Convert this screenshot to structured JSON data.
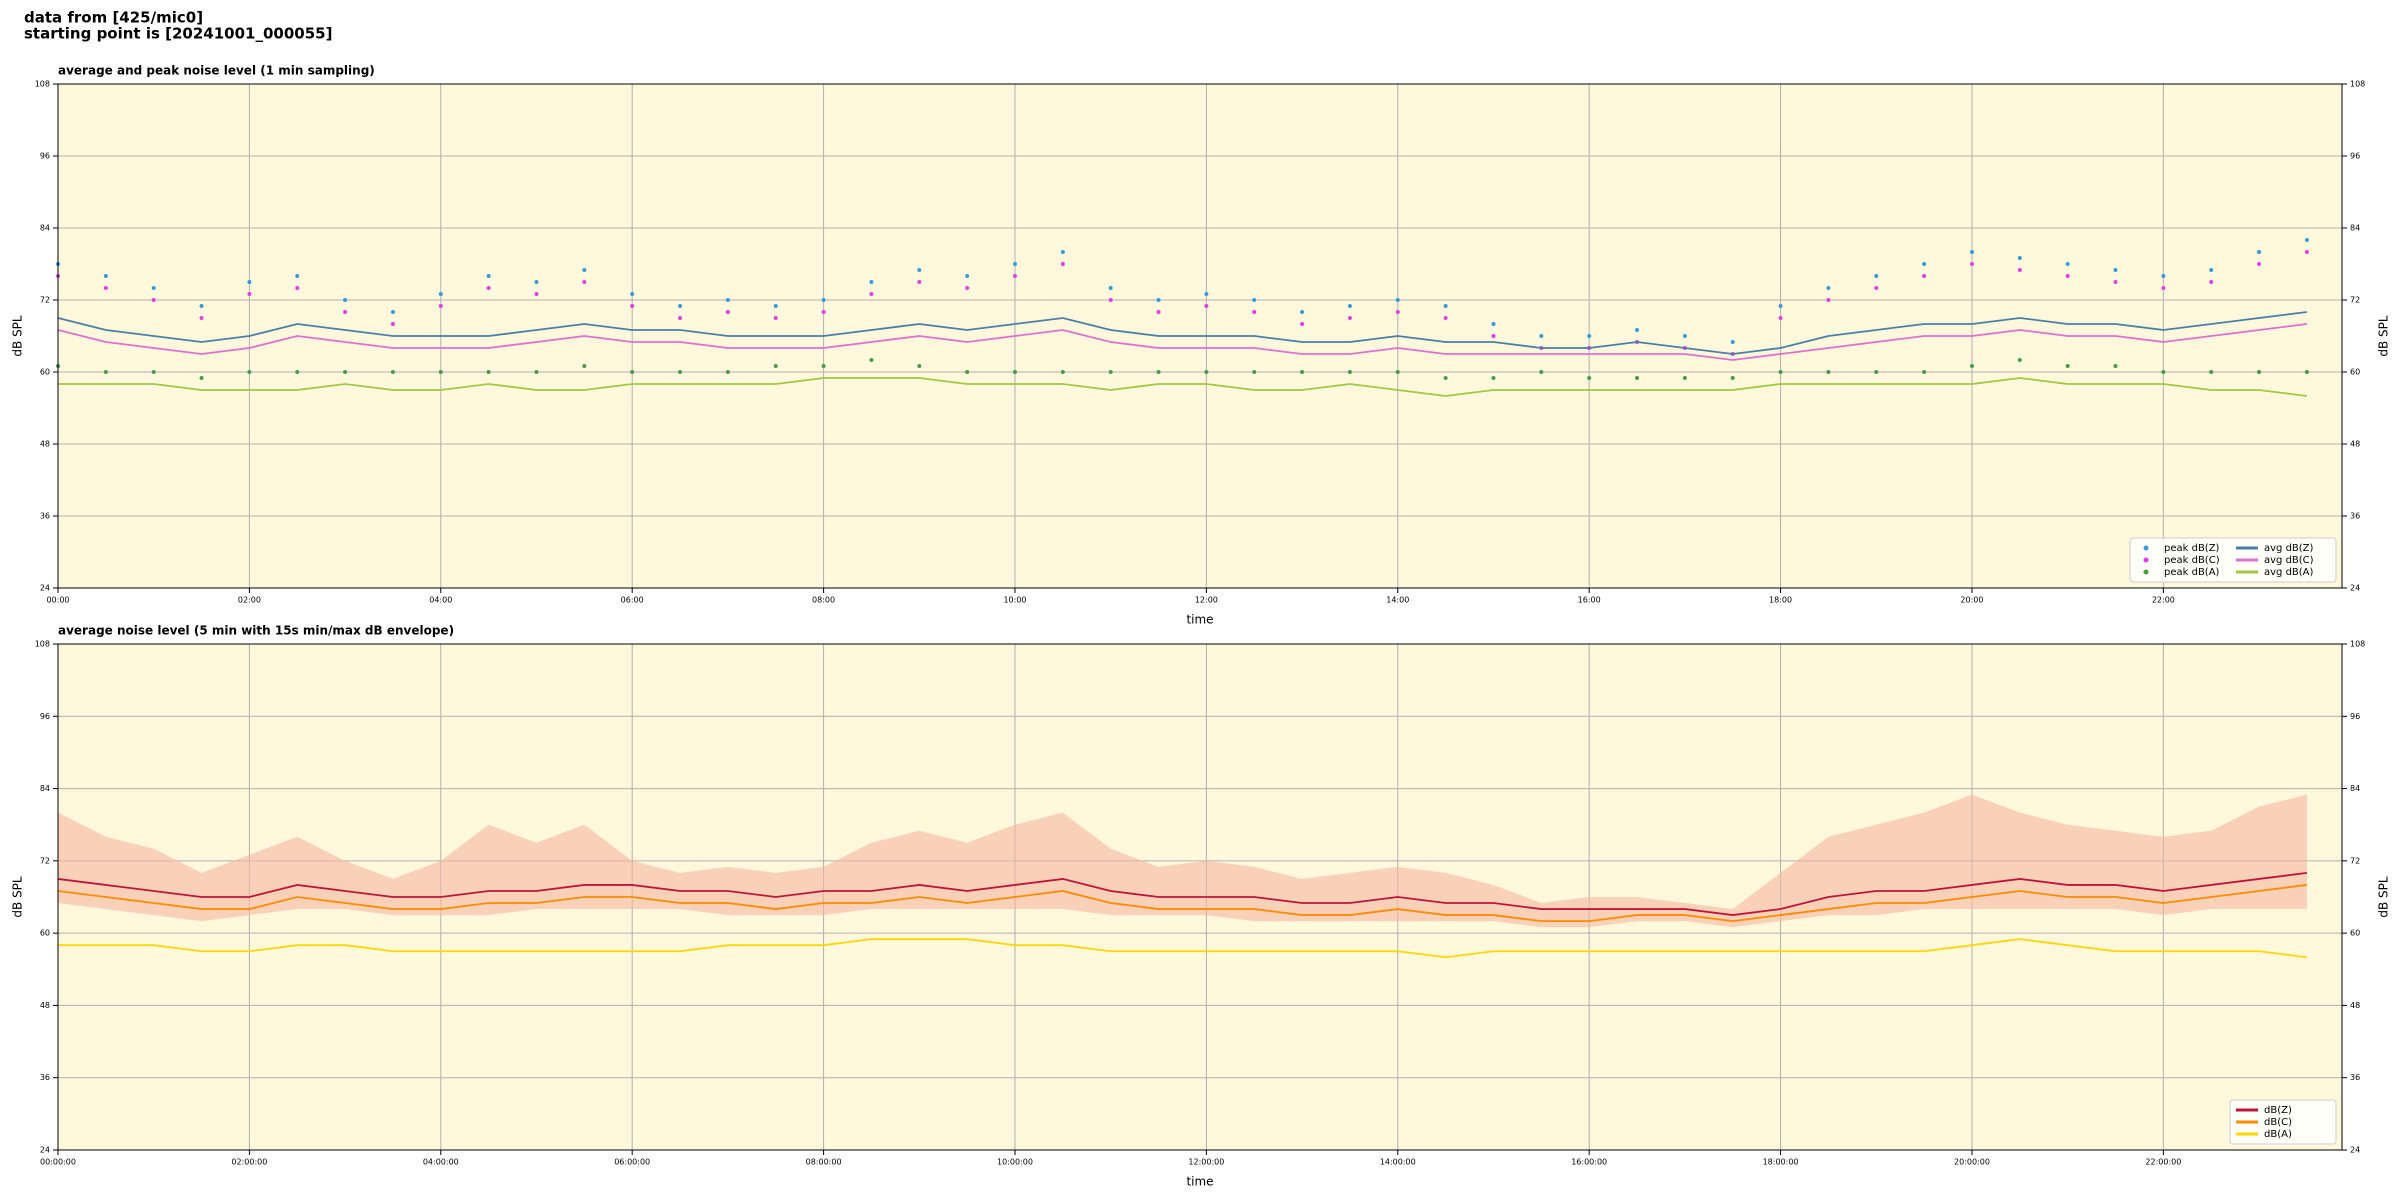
{
  "header": {
    "line1": "data from [425/mic0]",
    "line2": "starting point is [20241001_000055]"
  },
  "chart_data": [
    {
      "type": "line",
      "title": "average and peak noise level (1 min sampling)",
      "xlabel": "time",
      "ylabel": "dB SPL",
      "x": [
        0,
        30,
        60,
        90,
        120,
        150,
        180,
        210,
        240,
        270,
        300,
        330,
        360,
        390,
        420,
        450,
        480,
        510,
        540,
        570,
        600,
        630,
        660,
        690,
        720,
        750,
        780,
        810,
        840,
        870,
        900,
        930,
        960,
        990,
        1020,
        1050,
        1080,
        1110,
        1140,
        1170,
        1200,
        1230,
        1260,
        1290,
        1320,
        1350,
        1380,
        1410
      ],
      "xlim": [
        0,
        1432
      ],
      "xticks": [
        {
          "value": 0,
          "label": "00:00"
        },
        {
          "value": 120,
          "label": "02:00"
        },
        {
          "value": 240,
          "label": "04:00"
        },
        {
          "value": 360,
          "label": "06:00"
        },
        {
          "value": 480,
          "label": "08:00"
        },
        {
          "value": 600,
          "label": "10:00"
        },
        {
          "value": 720,
          "label": "12:00"
        },
        {
          "value": 840,
          "label": "14:00"
        },
        {
          "value": 960,
          "label": "16:00"
        },
        {
          "value": 1080,
          "label": "18:00"
        },
        {
          "value": 1200,
          "label": "20:00"
        },
        {
          "value": 1320,
          "label": "22:00"
        }
      ],
      "ylim": [
        24,
        108
      ],
      "yticks": [
        24,
        36,
        48,
        60,
        72,
        84,
        96,
        108
      ],
      "grid": true,
      "legend": "lower right",
      "legend_columns": 2,
      "series": [
        {
          "name": "peak dB(Z)",
          "style": "points",
          "color": "#3a9ad9",
          "values": [
            78,
            76,
            74,
            71,
            75,
            76,
            72,
            70,
            73,
            76,
            75,
            77,
            73,
            71,
            72,
            71,
            72,
            75,
            77,
            76,
            78,
            80,
            74,
            72,
            73,
            72,
            70,
            71,
            72,
            71,
            68,
            66,
            66,
            67,
            66,
            65,
            71,
            74,
            76,
            78,
            80,
            79,
            78,
            77,
            76,
            77,
            80,
            82
          ]
        },
        {
          "name": "peak dB(C)",
          "style": "points",
          "color": "#e040e0",
          "values": [
            76,
            74,
            72,
            69,
            73,
            74,
            70,
            68,
            71,
            74,
            73,
            75,
            71,
            69,
            70,
            69,
            70,
            73,
            75,
            74,
            76,
            78,
            72,
            70,
            71,
            70,
            68,
            69,
            70,
            69,
            66,
            64,
            64,
            65,
            64,
            63,
            69,
            72,
            74,
            76,
            78,
            77,
            76,
            75,
            74,
            75,
            78,
            80
          ]
        },
        {
          "name": "peak dB(A)",
          "style": "points",
          "color": "#4a9a4a",
          "values": [
            61,
            60,
            60,
            59,
            60,
            60,
            60,
            60,
            60,
            60,
            60,
            61,
            60,
            60,
            60,
            61,
            61,
            62,
            61,
            60,
            60,
            60,
            60,
            60,
            60,
            60,
            60,
            60,
            60,
            59,
            59,
            60,
            59,
            59,
            59,
            59,
            60,
            60,
            60,
            60,
            61,
            62,
            61,
            61,
            60,
            60,
            60,
            60
          ]
        },
        {
          "name": "avg dB(Z)",
          "style": "line",
          "color": "#4a7fa8",
          "values": [
            69,
            67,
            66,
            65,
            66,
            68,
            67,
            66,
            66,
            66,
            67,
            68,
            67,
            67,
            66,
            66,
            66,
            67,
            68,
            67,
            68,
            69,
            67,
            66,
            66,
            66,
            65,
            65,
            66,
            65,
            65,
            64,
            64,
            65,
            64,
            63,
            64,
            66,
            67,
            68,
            68,
            69,
            68,
            68,
            67,
            68,
            69,
            70
          ]
        },
        {
          "name": "avg dB(C)",
          "style": "line",
          "color": "#e070d0",
          "values": [
            67,
            65,
            64,
            63,
            64,
            66,
            65,
            64,
            64,
            64,
            65,
            66,
            65,
            65,
            64,
            64,
            64,
            65,
            66,
            65,
            66,
            67,
            65,
            64,
            64,
            64,
            63,
            63,
            64,
            63,
            63,
            63,
            63,
            63,
            63,
            62,
            63,
            64,
            65,
            66,
            66,
            67,
            66,
            66,
            65,
            66,
            67,
            68
          ]
        },
        {
          "name": "avg dB(A)",
          "style": "line",
          "color": "#a0c840",
          "values": [
            58,
            58,
            58,
            57,
            57,
            57,
            58,
            57,
            57,
            58,
            57,
            57,
            58,
            58,
            58,
            58,
            59,
            59,
            59,
            58,
            58,
            58,
            57,
            58,
            58,
            57,
            57,
            58,
            57,
            56,
            57,
            57,
            57,
            57,
            57,
            57,
            58,
            58,
            58,
            58,
            58,
            59,
            58,
            58,
            58,
            57,
            57,
            56
          ]
        }
      ]
    },
    {
      "type": "line",
      "title": "average noise level (5 min with 15s min/max dB envelope)",
      "xlabel": "time",
      "ylabel": "dB SPL",
      "x": [
        0,
        30,
        60,
        90,
        120,
        150,
        180,
        210,
        240,
        270,
        300,
        330,
        360,
        390,
        420,
        450,
        480,
        510,
        540,
        570,
        600,
        630,
        660,
        690,
        720,
        750,
        780,
        810,
        840,
        870,
        900,
        930,
        960,
        990,
        1020,
        1050,
        1080,
        1110,
        1140,
        1170,
        1200,
        1230,
        1260,
        1290,
        1320,
        1350,
        1380,
        1410
      ],
      "xlim": [
        0,
        1432
      ],
      "xticks": [
        {
          "value": 0,
          "label": "00:00:00"
        },
        {
          "value": 120,
          "label": "02:00:00"
        },
        {
          "value": 240,
          "label": "04:00:00"
        },
        {
          "value": 360,
          "label": "06:00:00"
        },
        {
          "value": 480,
          "label": "08:00:00"
        },
        {
          "value": 600,
          "label": "10:00:00"
        },
        {
          "value": 720,
          "label": "12:00:00"
        },
        {
          "value": 840,
          "label": "14:00:00"
        },
        {
          "value": 960,
          "label": "16:00:00"
        },
        {
          "value": 1080,
          "label": "18:00:00"
        },
        {
          "value": 1200,
          "label": "20:00:00"
        },
        {
          "value": 1320,
          "label": "22:00:00"
        }
      ],
      "ylim": [
        24,
        108
      ],
      "yticks": [
        24,
        36,
        48,
        60,
        72,
        84,
        96,
        108
      ],
      "grid": true,
      "legend": "lower right",
      "legend_columns": 1,
      "envelope": {
        "color": "#f4b8a0",
        "lower": [
          65,
          64,
          63,
          62,
          63,
          64,
          64,
          63,
          63,
          63,
          64,
          64,
          64,
          64,
          63,
          63,
          63,
          64,
          64,
          64,
          64,
          64,
          63,
          63,
          63,
          62,
          62,
          62,
          62,
          62,
          62,
          61,
          61,
          62,
          62,
          61,
          62,
          63,
          63,
          64,
          64,
          64,
          64,
          64,
          63,
          64,
          64,
          64
        ],
        "upper": [
          80,
          76,
          74,
          70,
          73,
          76,
          72,
          69,
          72,
          78,
          75,
          78,
          72,
          70,
          71,
          70,
          71,
          75,
          77,
          75,
          78,
          80,
          74,
          71,
          72,
          71,
          69,
          70,
          71,
          70,
          68,
          65,
          66,
          66,
          65,
          64,
          70,
          76,
          78,
          80,
          83,
          80,
          78,
          77,
          76,
          77,
          81,
          83
        ]
      },
      "series": [
        {
          "name": "dB(Z)",
          "style": "line",
          "color": "#c0143c",
          "values": [
            69,
            68,
            67,
            66,
            66,
            68,
            67,
            66,
            66,
            67,
            67,
            68,
            68,
            67,
            67,
            66,
            67,
            67,
            68,
            67,
            68,
            69,
            67,
            66,
            66,
            66,
            65,
            65,
            66,
            65,
            65,
            64,
            64,
            64,
            64,
            63,
            64,
            66,
            67,
            67,
            68,
            69,
            68,
            68,
            67,
            68,
            69,
            70
          ]
        },
        {
          "name": "dB(C)",
          "style": "line",
          "color": "#ff8c00",
          "values": [
            67,
            66,
            65,
            64,
            64,
            66,
            65,
            64,
            64,
            65,
            65,
            66,
            66,
            65,
            65,
            64,
            65,
            65,
            66,
            65,
            66,
            67,
            65,
            64,
            64,
            64,
            63,
            63,
            64,
            63,
            63,
            62,
            62,
            63,
            63,
            62,
            63,
            64,
            65,
            65,
            66,
            67,
            66,
            66,
            65,
            66,
            67,
            68
          ]
        },
        {
          "name": "dB(A)",
          "style": "line",
          "color": "#ffd700",
          "values": [
            58,
            58,
            58,
            57,
            57,
            58,
            58,
            57,
            57,
            57,
            57,
            57,
            57,
            57,
            58,
            58,
            58,
            59,
            59,
            59,
            58,
            58,
            57,
            57,
            57,
            57,
            57,
            57,
            57,
            56,
            57,
            57,
            57,
            57,
            57,
            57,
            57,
            57,
            57,
            57,
            58,
            59,
            58,
            57,
            57,
            57,
            57,
            56
          ]
        }
      ]
    }
  ]
}
